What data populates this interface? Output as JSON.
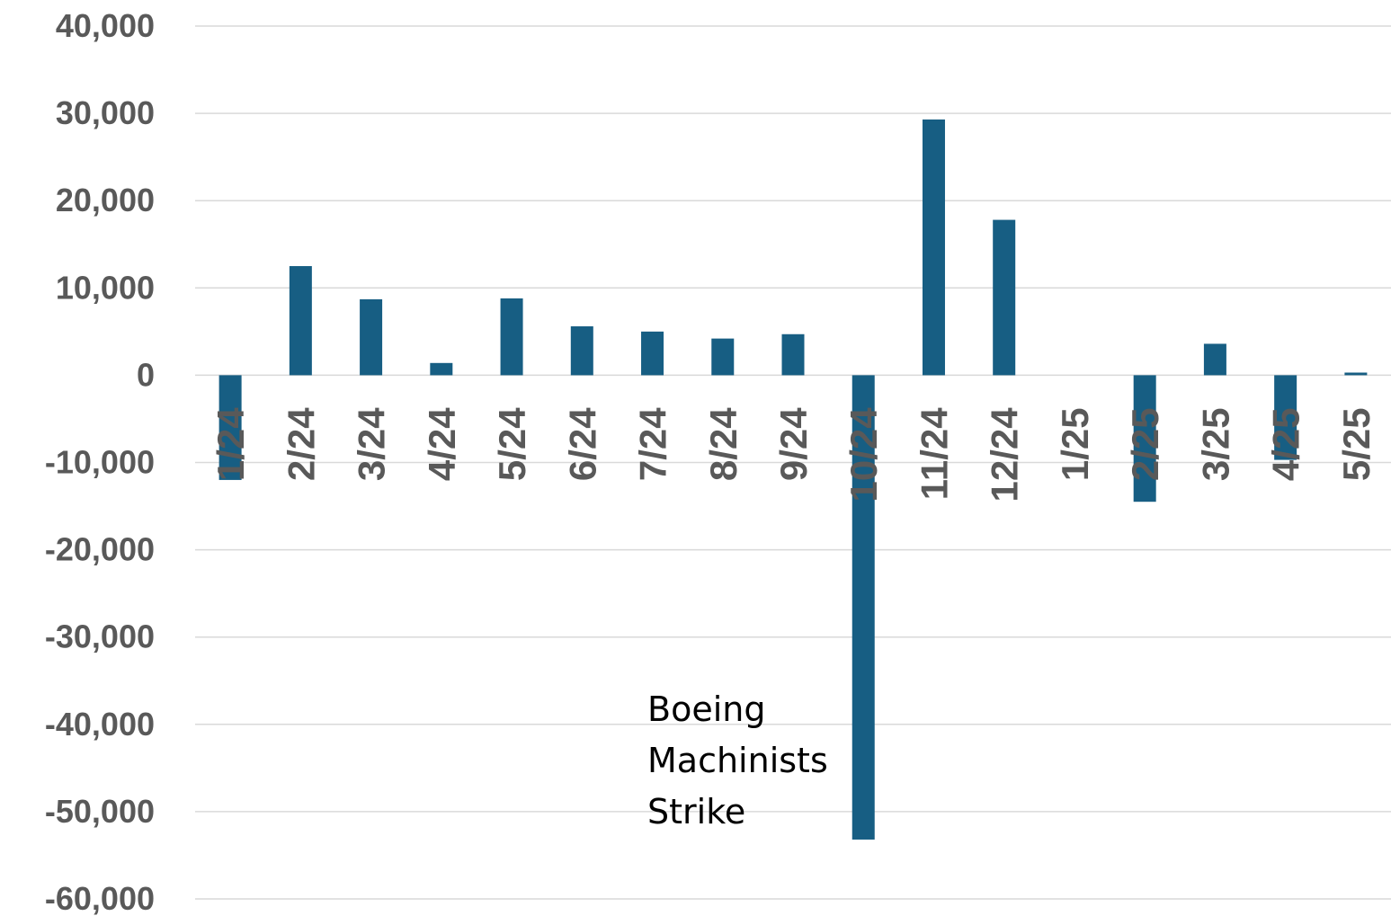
{
  "chart_data": {
    "type": "bar",
    "title": "",
    "xlabel": "",
    "ylabel": "",
    "categories": [
      "1/24",
      "2/24",
      "3/24",
      "4/24",
      "5/24",
      "6/24",
      "7/24",
      "8/24",
      "9/24",
      "10/24",
      "11/24",
      "12/24",
      "1/25",
      "2/25",
      "3/25",
      "4/25",
      "5/25"
    ],
    "values": [
      -12000,
      12500,
      8700,
      1400,
      8800,
      5600,
      5000,
      4200,
      4700,
      -53200,
      29300,
      17800,
      0,
      -14500,
      3600,
      -9700,
      300
    ],
    "ylim": [
      -60000,
      40000
    ],
    "yticks": [
      40000,
      30000,
      20000,
      10000,
      0,
      -10000,
      -20000,
      -30000,
      -40000,
      -50000,
      -60000
    ],
    "ytick_labels": [
      "40,000",
      "30,000",
      "20,000",
      "10,000",
      "0",
      "-10,000",
      "-20,000",
      "-30,000",
      "-40,000",
      "-50,000",
      "-60,000"
    ],
    "grid": true,
    "legend": "none",
    "bar_color": "#175E83",
    "annotations": [
      {
        "lines": [
          "Boeing",
          "Machinists",
          "Strike"
        ],
        "category": "10/24"
      }
    ]
  }
}
